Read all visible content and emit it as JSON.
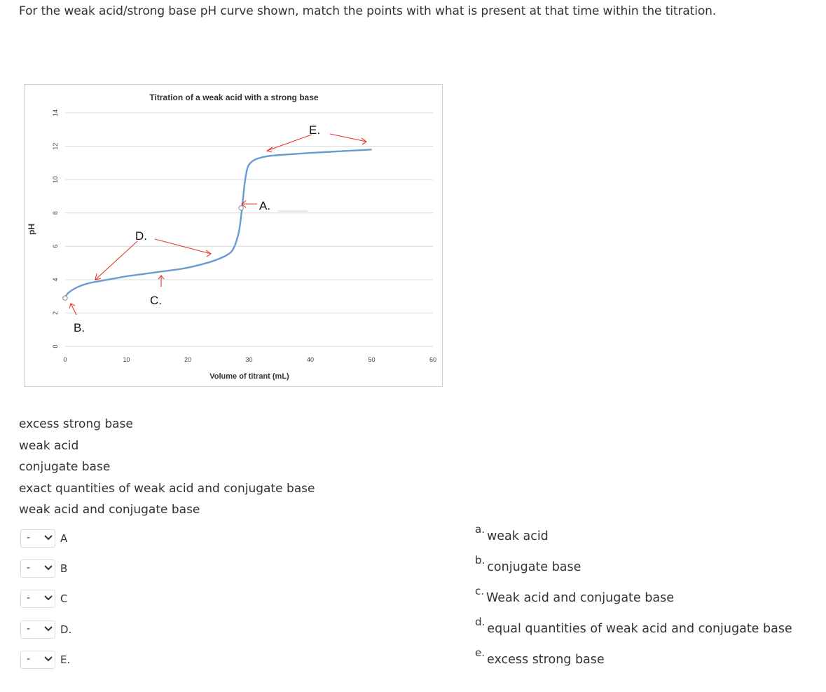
{
  "question": "For the weak acid/strong base pH curve shown, match the points with what is present at that time within the titration.",
  "chart_data": {
    "type": "line",
    "title": "Titration of a weak acid with a strong base",
    "xlabel": "Volume of titrant (mL)",
    "ylabel": "pH",
    "xlim": [
      0,
      60
    ],
    "ylim": [
      0,
      14
    ],
    "x_ticks": [
      "0",
      "10",
      "20",
      "30",
      "40",
      "50",
      "60"
    ],
    "y_ticks": [
      "0",
      "2",
      "4",
      "6",
      "8",
      "10",
      "12",
      "14"
    ],
    "grid": true,
    "series": [
      {
        "x": [
          0,
          0.5,
          2,
          4,
          7,
          10,
          13,
          16,
          19,
          21,
          24,
          26.5,
          27.5,
          28.3,
          28.7,
          29,
          29.3,
          29.6,
          30,
          31,
          33,
          36,
          40,
          45,
          50
        ],
        "y": [
          2.9,
          3.2,
          3.55,
          3.8,
          4.0,
          4.2,
          4.35,
          4.5,
          4.65,
          4.8,
          5.1,
          5.5,
          5.9,
          6.8,
          7.8,
          8.8,
          9.8,
          10.5,
          10.9,
          11.2,
          11.4,
          11.5,
          11.6,
          11.7,
          11.8
        ],
        "color": "#6b9bd2"
      }
    ],
    "annotations": [
      {
        "label": "A.",
        "x": 28.7,
        "y": 8.3
      },
      {
        "label": "B.",
        "x": 0,
        "y": 2.9
      },
      {
        "label": "C.",
        "x": 15.5,
        "y": 4.5
      },
      {
        "label": "D.",
        "x": 12,
        "y": 6.4
      },
      {
        "label": "E.",
        "x": 40.5,
        "y": 12.9
      }
    ]
  },
  "options_list": [
    "excess strong base",
    "weak acid",
    "conjugate base",
    "exact quantities of weak acid and conjugate base",
    "weak acid and conjugate base"
  ],
  "matches": [
    {
      "select_value": "-",
      "label": "A"
    },
    {
      "select_value": "-",
      "label": "B"
    },
    {
      "select_value": "-",
      "label": "C"
    },
    {
      "select_value": "-",
      "label": "D."
    },
    {
      "select_value": "-",
      "label": "E."
    }
  ],
  "answers": [
    {
      "letter": "a.",
      "text": "weak acid"
    },
    {
      "letter": "b.",
      "text": "conjugate base"
    },
    {
      "letter": "c.",
      "text": "Weak acid and conjugate base"
    },
    {
      "letter": "d.",
      "text": "equal quantities of weak acid and conjugate base"
    },
    {
      "letter": "e.",
      "text": "excess strong base"
    }
  ],
  "colors": {
    "curve": "#6b9bd2",
    "arrows": "#e8372b",
    "grid": "#d9d9d9"
  }
}
